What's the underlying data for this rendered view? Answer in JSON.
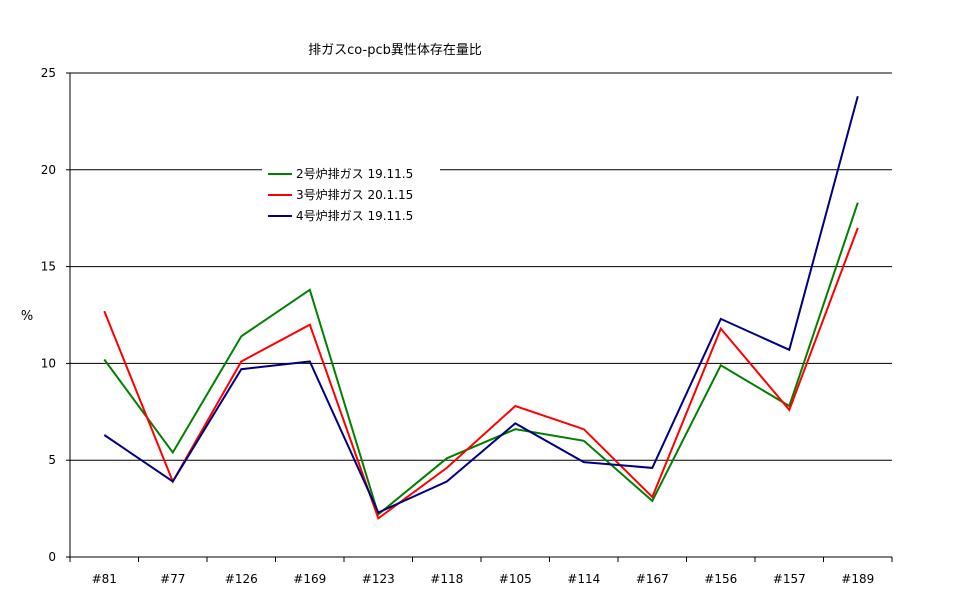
{
  "chart_data": {
    "type": "line",
    "title": "排ガスco-pcb異性体存在量比",
    "xlabel": "",
    "ylabel": "%",
    "categories": [
      "#81",
      "#77",
      "#126",
      "#169",
      "#123",
      "#118",
      "#105",
      "#114",
      "#167",
      "#156",
      "#157",
      "#189"
    ],
    "ylim": [
      0,
      25
    ],
    "yticks": [
      "0",
      "5",
      "10",
      "15",
      "20",
      "25"
    ],
    "grid": true,
    "legend_position": "upper-left inside plot",
    "series": [
      {
        "name": "2号炉排ガス 19.11.5",
        "color": "#008000",
        "values": [
          10.2,
          5.4,
          11.4,
          13.8,
          2.2,
          5.1,
          6.6,
          6.0,
          2.9,
          9.9,
          7.8,
          18.3
        ]
      },
      {
        "name": "3号炉排ガス 20.1.15",
        "color": "#ff0000",
        "values": [
          12.7,
          3.9,
          10.1,
          12.0,
          2.0,
          4.6,
          7.8,
          6.6,
          3.1,
          11.8,
          7.6,
          17.0
        ]
      },
      {
        "name": "4号炉排ガス 19.11.5",
        "color": "#000080",
        "values": [
          6.3,
          3.9,
          9.7,
          10.1,
          2.3,
          3.9,
          6.9,
          4.9,
          4.6,
          12.3,
          10.7,
          23.8
        ]
      }
    ]
  }
}
